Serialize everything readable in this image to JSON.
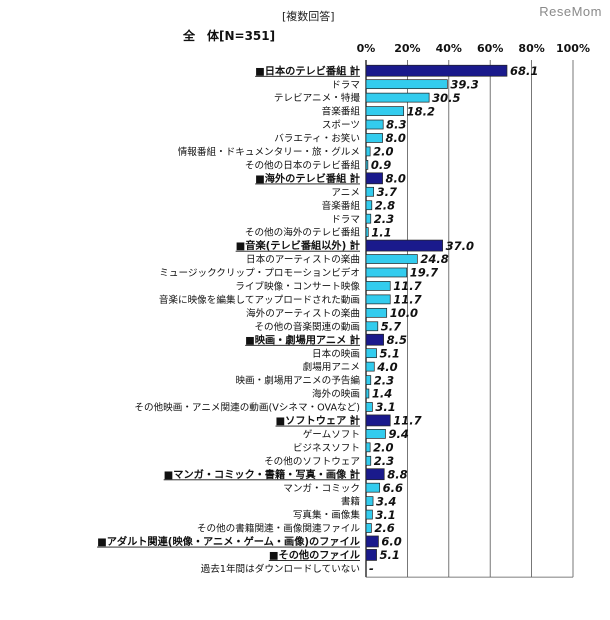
{
  "header": {
    "note": "[複数回答]",
    "total_label": "全　体[N=351]",
    "logo": "ReseMom"
  },
  "chart_data": {
    "type": "bar",
    "orientation": "horizontal",
    "title": "",
    "xlabel": "",
    "ylabel": "",
    "xlim": [
      0,
      100
    ],
    "x_ticks": [
      "0%",
      "20%",
      "40%",
      "60%",
      "80%",
      "100%"
    ],
    "grid": true,
    "colors": {
      "total": "#1a1a8c",
      "sub": "#33ccee",
      "outline": "#222222"
    },
    "items": [
      {
        "label": "■日本のテレビ番組 計",
        "value": 68.1,
        "display": "68.1",
        "kind": "total"
      },
      {
        "label": "ドラマ",
        "value": 39.3,
        "display": "39.3",
        "kind": "sub"
      },
      {
        "label": "テレビアニメ・特撮",
        "value": 30.5,
        "display": "30.5",
        "kind": "sub"
      },
      {
        "label": "音楽番組",
        "value": 18.2,
        "display": "18.2",
        "kind": "sub"
      },
      {
        "label": "スポーツ",
        "value": 8.3,
        "display": "8.3",
        "kind": "sub"
      },
      {
        "label": "バラエティ・お笑い",
        "value": 8.0,
        "display": "8.0",
        "kind": "sub"
      },
      {
        "label": "情報番組・ドキュメンタリー・旅・グルメ",
        "value": 2.0,
        "display": "2.0",
        "kind": "sub"
      },
      {
        "label": "その他の日本のテレビ番組",
        "value": 0.9,
        "display": "0.9",
        "kind": "sub"
      },
      {
        "label": "■海外のテレビ番組 計",
        "value": 8.0,
        "display": "8.0",
        "kind": "total"
      },
      {
        "label": "アニメ",
        "value": 3.7,
        "display": "3.7",
        "kind": "sub"
      },
      {
        "label": "音楽番組",
        "value": 2.8,
        "display": "2.8",
        "kind": "sub"
      },
      {
        "label": "ドラマ",
        "value": 2.3,
        "display": "2.3",
        "kind": "sub"
      },
      {
        "label": "その他の海外のテレビ番組",
        "value": 1.1,
        "display": "1.1",
        "kind": "sub"
      },
      {
        "label": "■音楽(テレビ番組以外) 計",
        "value": 37.0,
        "display": "37.0",
        "kind": "total"
      },
      {
        "label": "日本のアーティストの楽曲",
        "value": 24.8,
        "display": "24.8",
        "kind": "sub"
      },
      {
        "label": "ミュージッククリップ・プロモーションビデオ",
        "value": 19.7,
        "display": "19.7",
        "kind": "sub"
      },
      {
        "label": "ライブ映像・コンサート映像",
        "value": 11.7,
        "display": "11.7",
        "kind": "sub"
      },
      {
        "label": "音楽に映像を編集してアップロードされた動画",
        "value": 11.7,
        "display": "11.7",
        "kind": "sub"
      },
      {
        "label": "海外のアーティストの楽曲",
        "value": 10.0,
        "display": "10.0",
        "kind": "sub"
      },
      {
        "label": "その他の音楽関連の動画",
        "value": 5.7,
        "display": "5.7",
        "kind": "sub"
      },
      {
        "label": "■映画・劇場用アニメ 計",
        "value": 8.5,
        "display": "8.5",
        "kind": "total"
      },
      {
        "label": "日本の映画",
        "value": 5.1,
        "display": "5.1",
        "kind": "sub"
      },
      {
        "label": "劇場用アニメ",
        "value": 4.0,
        "display": "4.0",
        "kind": "sub"
      },
      {
        "label": "映画・劇場用アニメの予告編",
        "value": 2.3,
        "display": "2.3",
        "kind": "sub"
      },
      {
        "label": "海外の映画",
        "value": 1.4,
        "display": "1.4",
        "kind": "sub"
      },
      {
        "label": "その他映画・アニメ関連の動画(Vシネマ・OVAなど)",
        "value": 3.1,
        "display": "3.1",
        "kind": "sub"
      },
      {
        "label": "■ソフトウェア 計",
        "value": 11.7,
        "display": "11.7",
        "kind": "total"
      },
      {
        "label": "ゲームソフト",
        "value": 9.4,
        "display": "9.4",
        "kind": "sub"
      },
      {
        "label": "ビジネスソフト",
        "value": 2.0,
        "display": "2.0",
        "kind": "sub"
      },
      {
        "label": "その他のソフトウェア",
        "value": 2.3,
        "display": "2.3",
        "kind": "sub"
      },
      {
        "label": "■マンガ・コミック・書籍・写真・画像 計",
        "value": 8.8,
        "display": "8.8",
        "kind": "total"
      },
      {
        "label": "マンガ・コミック",
        "value": 6.6,
        "display": "6.6",
        "kind": "sub"
      },
      {
        "label": "書籍",
        "value": 3.4,
        "display": "3.4",
        "kind": "sub"
      },
      {
        "label": "写真集・画像集",
        "value": 3.1,
        "display": "3.1",
        "kind": "sub"
      },
      {
        "label": "その他の書籍関連・画像関連ファイル",
        "value": 2.6,
        "display": "2.6",
        "kind": "sub"
      },
      {
        "label": "■アダルト関連(映像・アニメ・ゲーム・画像)のファイル",
        "value": 6.0,
        "display": "6.0",
        "kind": "total"
      },
      {
        "label": "■その他のファイル",
        "value": 5.1,
        "display": "5.1",
        "kind": "total"
      },
      {
        "label": "過去1年間はダウンロードしていない",
        "value": 0,
        "display": "-",
        "kind": "none"
      }
    ]
  }
}
